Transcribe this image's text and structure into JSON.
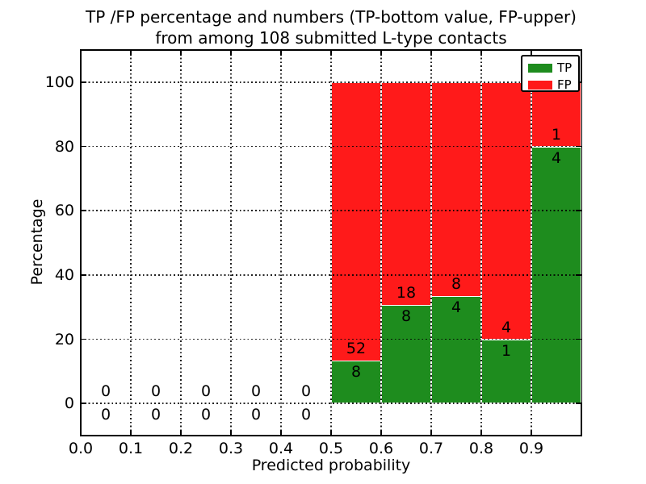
{
  "figure": {
    "title_line1": "TP /FP percentage and numbers (TP-bottom value, FP-upper)",
    "title_line2": "from among 108 submitted L-type contacts"
  },
  "chart_data": {
    "type": "bar",
    "stacked": true,
    "title": "TP /FP percentage and numbers (TP-bottom value, FP-upper) from among 108 submitted L-type contacts",
    "xlabel": "Predicted probability",
    "ylabel": "Percentage",
    "xlim": [
      0.0,
      1.0
    ],
    "ylim": [
      -10,
      110
    ],
    "xtick_values": [
      0.0,
      0.1,
      0.2,
      0.3,
      0.4,
      0.5,
      0.6,
      0.7,
      0.8,
      0.9
    ],
    "xtick_labels": [
      "0.0",
      "0.1",
      "0.2",
      "0.3",
      "0.4",
      "0.5",
      "0.6",
      "0.7",
      "0.8",
      "0.9"
    ],
    "ytick_values": [
      0,
      20,
      40,
      60,
      80,
      100
    ],
    "grid": {
      "visible": true,
      "style": "dotted",
      "color": "#000000"
    },
    "total_contacts": 108,
    "legend": {
      "position": "upper right",
      "entries": [
        {
          "label": "TP",
          "color": "#1e8c1e"
        },
        {
          "label": "FP",
          "color": "#ff1a1a"
        }
      ]
    },
    "colors": {
      "tp": "#1e8c1e",
      "fp": "#ff1a1a",
      "bar_edge": "#ffffff",
      "grid": "#000000"
    },
    "bars": [
      {
        "bin_start": 0.0,
        "bin_end": 0.1,
        "tp_count": 0,
        "fp_count": 0,
        "tp_pct": 0,
        "fp_pct": 0
      },
      {
        "bin_start": 0.1,
        "bin_end": 0.2,
        "tp_count": 0,
        "fp_count": 0,
        "tp_pct": 0,
        "fp_pct": 0
      },
      {
        "bin_start": 0.2,
        "bin_end": 0.3,
        "tp_count": 0,
        "fp_count": 0,
        "tp_pct": 0,
        "fp_pct": 0
      },
      {
        "bin_start": 0.3,
        "bin_end": 0.4,
        "tp_count": 0,
        "fp_count": 0,
        "tp_pct": 0,
        "fp_pct": 0
      },
      {
        "bin_start": 0.4,
        "bin_end": 0.5,
        "tp_count": 0,
        "fp_count": 0,
        "tp_pct": 0,
        "fp_pct": 0
      },
      {
        "bin_start": 0.5,
        "bin_end": 0.6,
        "tp_count": 8,
        "fp_count": 52,
        "tp_pct": 13.33,
        "fp_pct": 86.67
      },
      {
        "bin_start": 0.6,
        "bin_end": 0.7,
        "tp_count": 8,
        "fp_count": 18,
        "tp_pct": 30.77,
        "fp_pct": 69.23
      },
      {
        "bin_start": 0.7,
        "bin_end": 0.8,
        "tp_count": 4,
        "fp_count": 8,
        "tp_pct": 33.33,
        "fp_pct": 66.67
      },
      {
        "bin_start": 0.8,
        "bin_end": 0.9,
        "tp_count": 1,
        "fp_count": 4,
        "tp_pct": 20.0,
        "fp_pct": 80.0
      },
      {
        "bin_start": 0.9,
        "bin_end": 1.0,
        "tp_count": 4,
        "fp_count": 1,
        "tp_pct": 80.0,
        "fp_pct": 20.0
      }
    ]
  }
}
